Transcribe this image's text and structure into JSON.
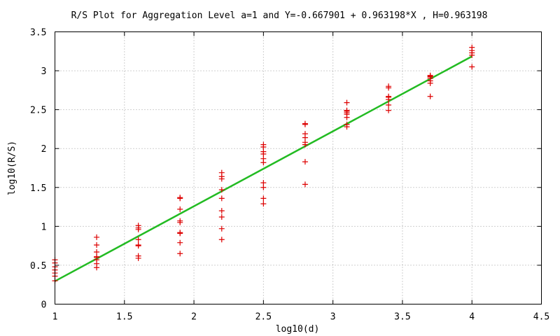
{
  "chart_data": {
    "type": "scatter",
    "title": "R/S Plot for Aggregation Level a=1 and Y=-0.667901 + 0.963198*X , H=0.963198",
    "xlabel": "log10(d)",
    "ylabel": "log10(R/S)",
    "xlim": [
      1,
      4.5
    ],
    "ylim": [
      0,
      3.5
    ],
    "x_ticks": [
      "1",
      "1.5",
      "2",
      "2.5",
      "3",
      "3.5",
      "4",
      "4.5"
    ],
    "y_ticks": [
      "0",
      "0.5",
      "1",
      "1.5",
      "2",
      "2.5",
      "3",
      "3.5"
    ],
    "grid": true,
    "legend": "none",
    "colors": {
      "points": "#dd0000",
      "fit_line": "#22bb22"
    },
    "series": [
      {
        "type": "scatter",
        "marker": "+",
        "points": [
          [
            1.0,
            0.3
          ],
          [
            1.0,
            0.36
          ],
          [
            1.0,
            0.4
          ],
          [
            1.0,
            0.44
          ],
          [
            1.0,
            0.48
          ],
          [
            1.0,
            0.53
          ],
          [
            1.0,
            0.57
          ],
          [
            1.3,
            0.47
          ],
          [
            1.3,
            0.52
          ],
          [
            1.3,
            0.57
          ],
          [
            1.3,
            0.6
          ],
          [
            1.3,
            0.61
          ],
          [
            1.3,
            0.67
          ],
          [
            1.3,
            0.76
          ],
          [
            1.3,
            0.86
          ],
          [
            1.6,
            0.59
          ],
          [
            1.6,
            0.62
          ],
          [
            1.6,
            0.75
          ],
          [
            1.6,
            0.76
          ],
          [
            1.6,
            0.83
          ],
          [
            1.6,
            0.96
          ],
          [
            1.6,
            0.98
          ],
          [
            1.6,
            1.01
          ],
          [
            1.9,
            0.65
          ],
          [
            1.9,
            0.79
          ],
          [
            1.9,
            0.91
          ],
          [
            1.9,
            0.92
          ],
          [
            1.9,
            1.05
          ],
          [
            1.9,
            1.07
          ],
          [
            1.9,
            1.22
          ],
          [
            1.9,
            1.36
          ],
          [
            1.9,
            1.37
          ],
          [
            2.2,
            0.83
          ],
          [
            2.2,
            0.97
          ],
          [
            2.2,
            1.12
          ],
          [
            2.2,
            1.2
          ],
          [
            2.2,
            1.36
          ],
          [
            2.2,
            1.47
          ],
          [
            2.2,
            1.61
          ],
          [
            2.2,
            1.64
          ],
          [
            2.2,
            1.69
          ],
          [
            2.5,
            1.29
          ],
          [
            2.5,
            1.36
          ],
          [
            2.5,
            1.5
          ],
          [
            2.5,
            1.56
          ],
          [
            2.5,
            1.82
          ],
          [
            2.5,
            1.87
          ],
          [
            2.5,
            1.93
          ],
          [
            2.5,
            1.96
          ],
          [
            2.5,
            2.02
          ],
          [
            2.5,
            2.05
          ],
          [
            2.8,
            1.54
          ],
          [
            2.8,
            1.83
          ],
          [
            2.8,
            2.05
          ],
          [
            2.8,
            2.08
          ],
          [
            2.8,
            2.14
          ],
          [
            2.8,
            2.19
          ],
          [
            2.8,
            2.31
          ],
          [
            2.8,
            2.32
          ],
          [
            3.1,
            2.28
          ],
          [
            3.1,
            2.31
          ],
          [
            3.1,
            2.4
          ],
          [
            3.1,
            2.44
          ],
          [
            3.1,
            2.46
          ],
          [
            3.1,
            2.48
          ],
          [
            3.1,
            2.49
          ],
          [
            3.1,
            2.59
          ],
          [
            3.4,
            2.49
          ],
          [
            3.4,
            2.56
          ],
          [
            3.4,
            2.63
          ],
          [
            3.4,
            2.66
          ],
          [
            3.4,
            2.67
          ],
          [
            3.4,
            2.78
          ],
          [
            3.4,
            2.8
          ],
          [
            3.7,
            2.67
          ],
          [
            3.7,
            2.84
          ],
          [
            3.7,
            2.87
          ],
          [
            3.7,
            2.9
          ],
          [
            3.7,
            2.92
          ],
          [
            3.7,
            2.93
          ],
          [
            3.7,
            2.94
          ],
          [
            4.0,
            3.05
          ],
          [
            4.0,
            3.2
          ],
          [
            4.0,
            3.23
          ],
          [
            4.0,
            3.26
          ],
          [
            4.0,
            3.3
          ]
        ]
      },
      {
        "type": "line",
        "equation": "Y=-0.667901 + 0.963198*X",
        "intercept": -0.667901,
        "slope": 0.963198,
        "x_range": [
          1,
          4
        ]
      }
    ]
  }
}
